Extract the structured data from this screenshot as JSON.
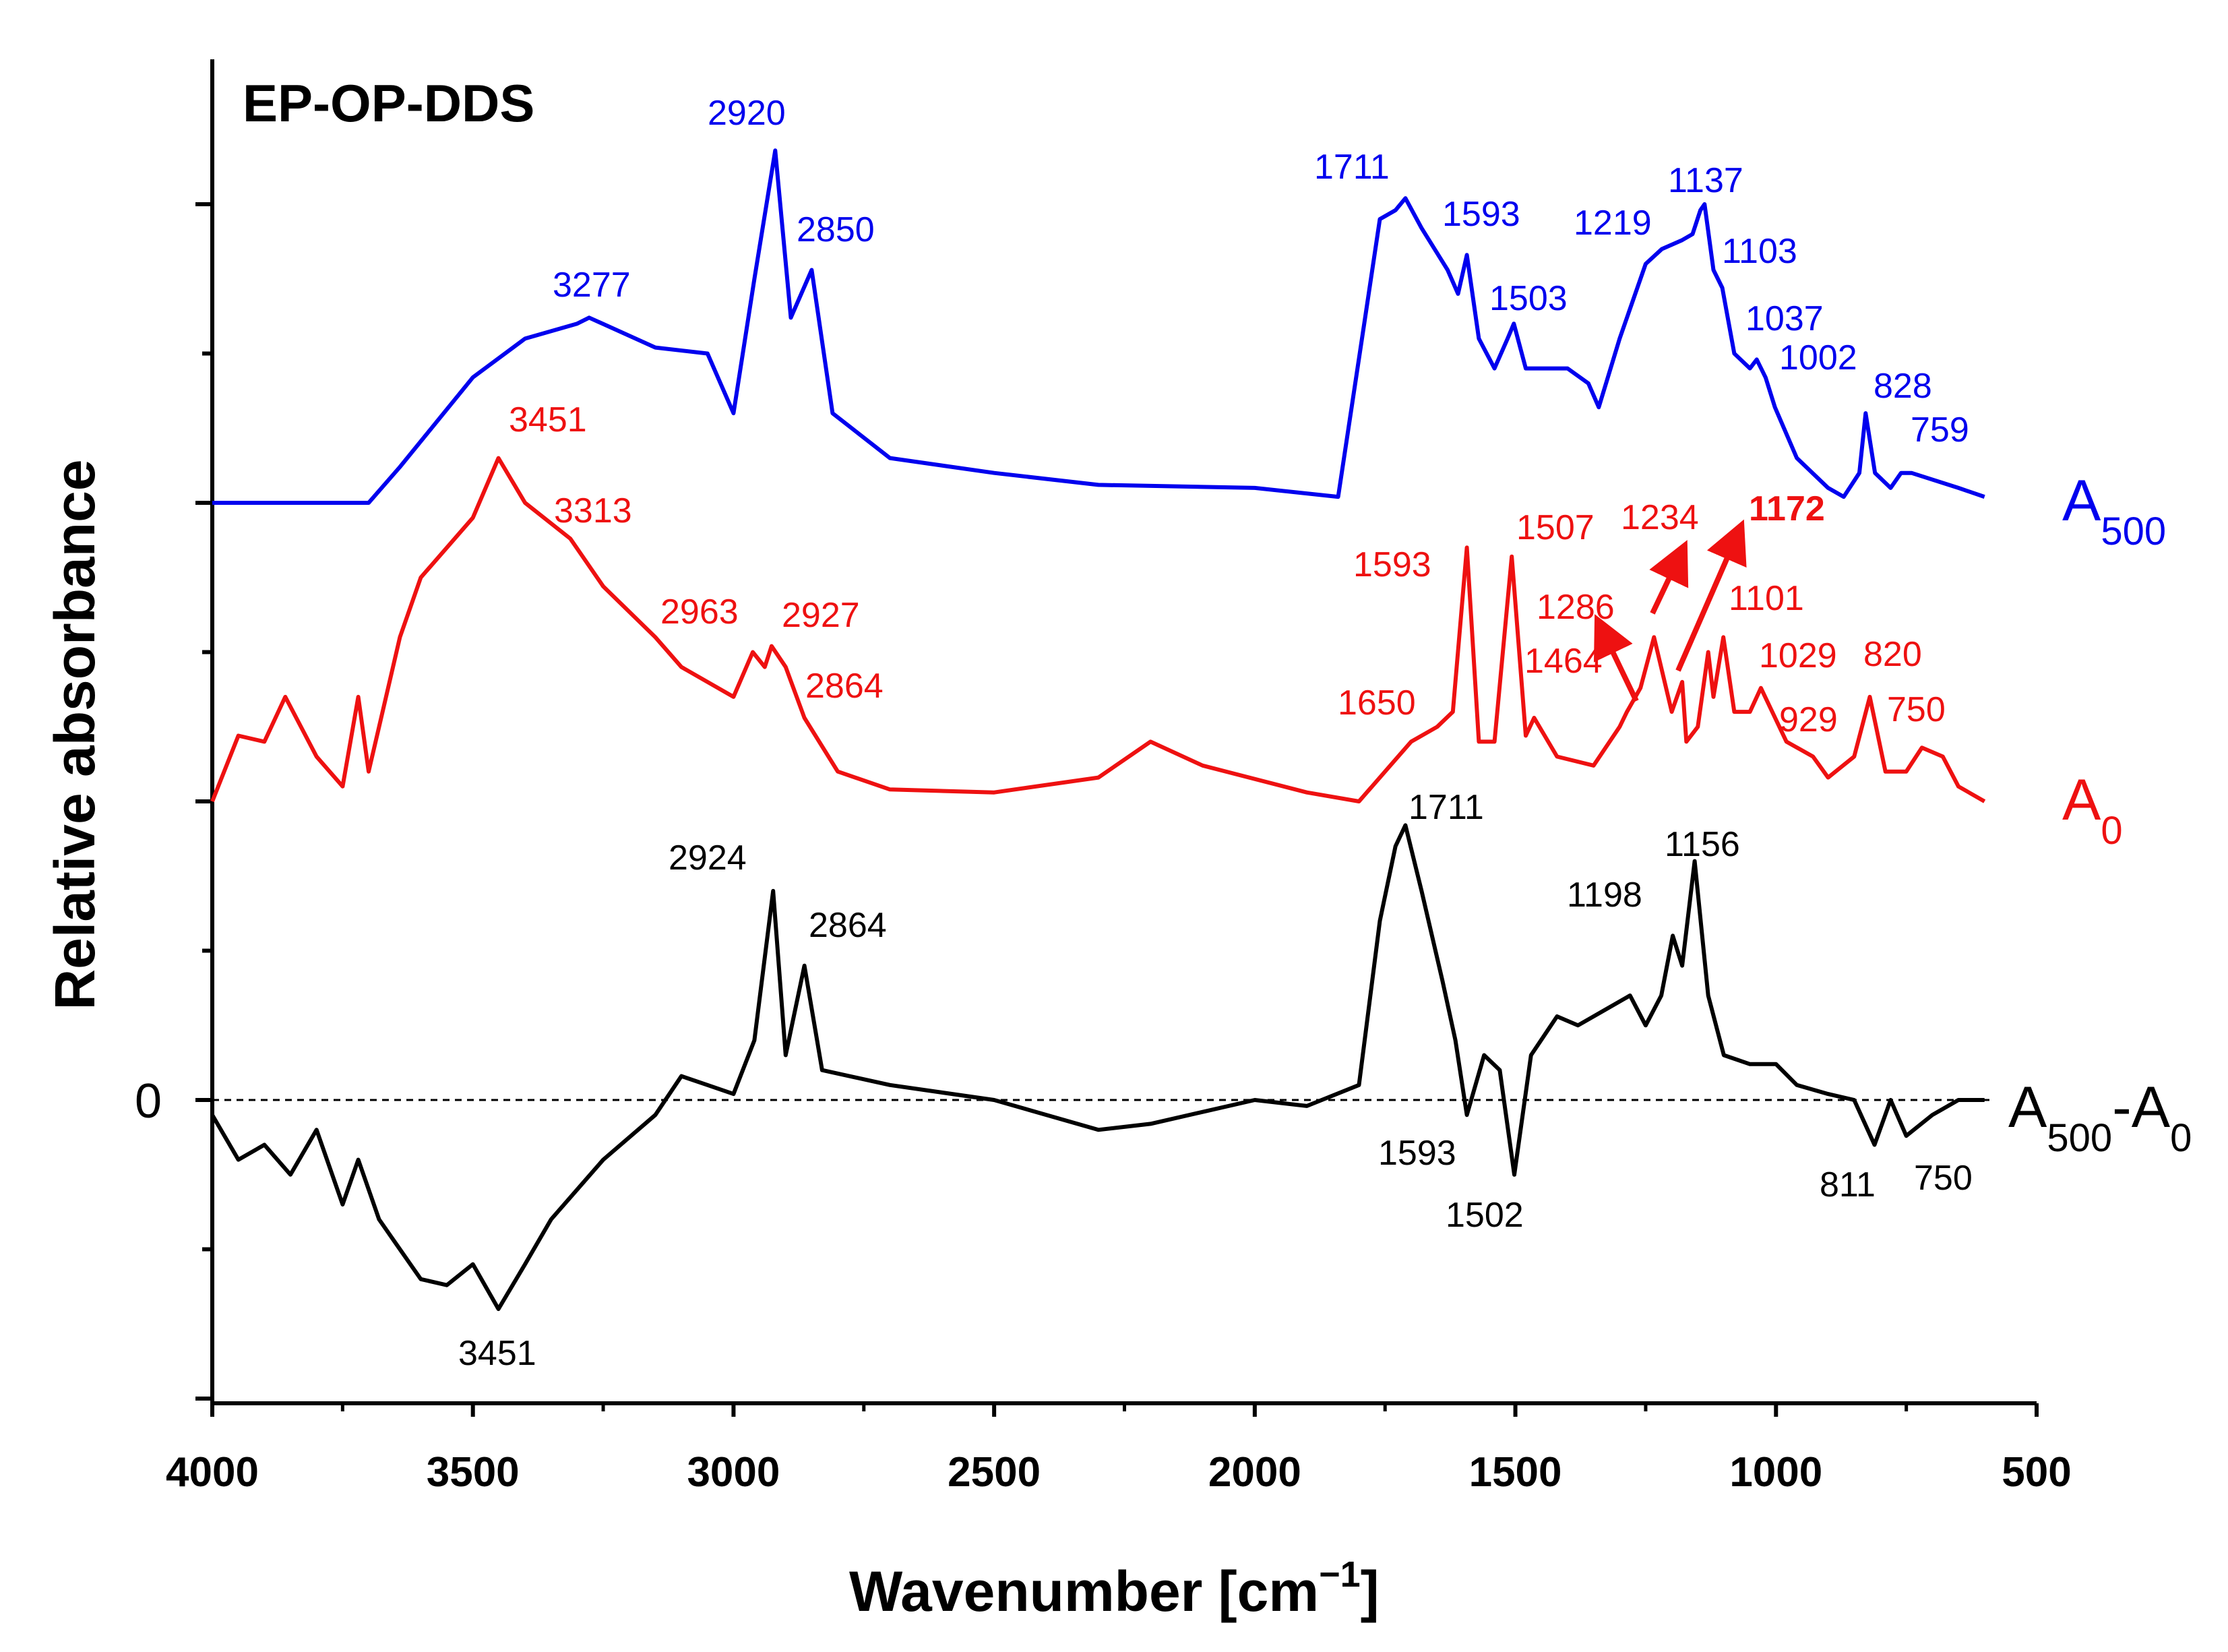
{
  "chart_data": {
    "type": "line",
    "title": "EP-OP-DDS",
    "xlabel": "Wavenumber [cm",
    "xlabel_sup": "−1",
    "xlabel_end": "]",
    "ylabel": "Relative absorbance",
    "xlim": [
      4000,
      500
    ],
    "x_ticks": [
      "4000",
      "3500",
      "3000",
      "2500",
      "2000",
      "1500",
      "1000",
      "500"
    ],
    "zero_label": "0",
    "colors": {
      "A500": "#0000ee",
      "A0": "#ee1111",
      "diff": "#000000"
    },
    "series": [
      {
        "name": "A500",
        "legend_main": "A",
        "legend_sub": "500",
        "offset": 2.0,
        "points": [
          [
            4000,
            0.0
          ],
          [
            3700,
            0.0
          ],
          [
            3640,
            0.12
          ],
          [
            3500,
            0.42
          ],
          [
            3400,
            0.55
          ],
          [
            3300,
            0.6
          ],
          [
            3277,
            0.62
          ],
          [
            3150,
            0.52
          ],
          [
            3050,
            0.5
          ],
          [
            3000,
            0.3
          ],
          [
            2960,
            0.75
          ],
          [
            2920,
            1.18
          ],
          [
            2890,
            0.62
          ],
          [
            2850,
            0.78
          ],
          [
            2810,
            0.3
          ],
          [
            2700,
            0.15
          ],
          [
            2500,
            0.1
          ],
          [
            2300,
            0.06
          ],
          [
            2000,
            0.05
          ],
          [
            1840,
            0.02
          ],
          [
            1790,
            0.6
          ],
          [
            1760,
            0.95
          ],
          [
            1730,
            0.98
          ],
          [
            1711,
            1.02
          ],
          [
            1680,
            0.92
          ],
          [
            1630,
            0.78
          ],
          [
            1610,
            0.7
          ],
          [
            1593,
            0.83
          ],
          [
            1570,
            0.55
          ],
          [
            1540,
            0.45
          ],
          [
            1515,
            0.55
          ],
          [
            1503,
            0.6
          ],
          [
            1480,
            0.45
          ],
          [
            1400,
            0.45
          ],
          [
            1360,
            0.4
          ],
          [
            1340,
            0.32
          ],
          [
            1300,
            0.55
          ],
          [
            1250,
            0.8
          ],
          [
            1219,
            0.85
          ],
          [
            1180,
            0.88
          ],
          [
            1160,
            0.9
          ],
          [
            1145,
            0.98
          ],
          [
            1137,
            1.0
          ],
          [
            1120,
            0.78
          ],
          [
            1103,
            0.72
          ],
          [
            1080,
            0.5
          ],
          [
            1050,
            0.45
          ],
          [
            1037,
            0.48
          ],
          [
            1020,
            0.42
          ],
          [
            1002,
            0.32
          ],
          [
            960,
            0.15
          ],
          [
            900,
            0.05
          ],
          [
            870,
            0.02
          ],
          [
            840,
            0.1
          ],
          [
            828,
            0.3
          ],
          [
            810,
            0.1
          ],
          [
            780,
            0.05
          ],
          [
            760,
            0.1
          ],
          [
            740,
            0.1
          ],
          [
            650,
            0.05
          ],
          [
            600,
            0.02
          ]
        ]
      },
      {
        "name": "A0",
        "legend_main": "A",
        "legend_sub": "0",
        "offset": 1.0,
        "points": [
          [
            4000,
            0.0
          ],
          [
            3950,
            0.22
          ],
          [
            3900,
            0.2
          ],
          [
            3860,
            0.35
          ],
          [
            3800,
            0.15
          ],
          [
            3750,
            0.05
          ],
          [
            3720,
            0.35
          ],
          [
            3700,
            0.1
          ],
          [
            3680,
            0.25
          ],
          [
            3640,
            0.55
          ],
          [
            3600,
            0.75
          ],
          [
            3500,
            0.95
          ],
          [
            3451,
            1.15
          ],
          [
            3400,
            1.0
          ],
          [
            3313,
            0.88
          ],
          [
            3250,
            0.72
          ],
          [
            3150,
            0.55
          ],
          [
            3100,
            0.45
          ],
          [
            3000,
            0.35
          ],
          [
            2963,
            0.5
          ],
          [
            2940,
            0.45
          ],
          [
            2927,
            0.52
          ],
          [
            2900,
            0.45
          ],
          [
            2864,
            0.28
          ],
          [
            2800,
            0.1
          ],
          [
            2700,
            0.04
          ],
          [
            2500,
            0.03
          ],
          [
            2300,
            0.08
          ],
          [
            2200,
            0.2
          ],
          [
            2100,
            0.12
          ],
          [
            1900,
            0.03
          ],
          [
            1800,
            0.0
          ],
          [
            1700,
            0.2
          ],
          [
            1650,
            0.25
          ],
          [
            1620,
            0.3
          ],
          [
            1593,
            0.85
          ],
          [
            1570,
            0.2
          ],
          [
            1540,
            0.2
          ],
          [
            1507,
            0.82
          ],
          [
            1480,
            0.22
          ],
          [
            1464,
            0.28
          ],
          [
            1420,
            0.15
          ],
          [
            1350,
            0.12
          ],
          [
            1300,
            0.25
          ],
          [
            1286,
            0.3
          ],
          [
            1260,
            0.38
          ],
          [
            1234,
            0.55
          ],
          [
            1200,
            0.3
          ],
          [
            1180,
            0.4
          ],
          [
            1172,
            0.2
          ],
          [
            1150,
            0.25
          ],
          [
            1130,
            0.5
          ],
          [
            1120,
            0.35
          ],
          [
            1101,
            0.55
          ],
          [
            1080,
            0.3
          ],
          [
            1050,
            0.3
          ],
          [
            1029,
            0.38
          ],
          [
            980,
            0.2
          ],
          [
            929,
            0.15
          ],
          [
            900,
            0.08
          ],
          [
            850,
            0.15
          ],
          [
            820,
            0.35
          ],
          [
            790,
            0.1
          ],
          [
            750,
            0.1
          ],
          [
            720,
            0.18
          ],
          [
            680,
            0.15
          ],
          [
            650,
            0.05
          ],
          [
            600,
            0.0
          ]
        ]
      },
      {
        "name": "A500-A0",
        "legend_main": "A",
        "legend_sub": "500",
        "legend_mid": "-A",
        "legend_sub2": "0",
        "offset": 0.0,
        "points": [
          [
            4000,
            -0.05
          ],
          [
            3950,
            -0.2
          ],
          [
            3900,
            -0.15
          ],
          [
            3850,
            -0.25
          ],
          [
            3800,
            -0.1
          ],
          [
            3750,
            -0.35
          ],
          [
            3720,
            -0.2
          ],
          [
            3680,
            -0.4
          ],
          [
            3640,
            -0.5
          ],
          [
            3600,
            -0.6
          ],
          [
            3550,
            -0.62
          ],
          [
            3500,
            -0.55
          ],
          [
            3451,
            -0.7
          ],
          [
            3400,
            -0.55
          ],
          [
            3350,
            -0.4
          ],
          [
            3250,
            -0.2
          ],
          [
            3150,
            -0.05
          ],
          [
            3100,
            0.08
          ],
          [
            3050,
            0.05
          ],
          [
            3000,
            0.02
          ],
          [
            2960,
            0.2
          ],
          [
            2924,
            0.7
          ],
          [
            2900,
            0.15
          ],
          [
            2864,
            0.45
          ],
          [
            2830,
            0.1
          ],
          [
            2700,
            0.05
          ],
          [
            2500,
            0.0
          ],
          [
            2300,
            -0.1
          ],
          [
            2200,
            -0.08
          ],
          [
            2000,
            0.0
          ],
          [
            1900,
            -0.02
          ],
          [
            1800,
            0.05
          ],
          [
            1760,
            0.6
          ],
          [
            1730,
            0.85
          ],
          [
            1711,
            0.92
          ],
          [
            1680,
            0.7
          ],
          [
            1640,
            0.4
          ],
          [
            1615,
            0.2
          ],
          [
            1593,
            -0.05
          ],
          [
            1560,
            0.15
          ],
          [
            1530,
            0.1
          ],
          [
            1502,
            -0.25
          ],
          [
            1470,
            0.15
          ],
          [
            1420,
            0.28
          ],
          [
            1380,
            0.25
          ],
          [
            1330,
            0.3
          ],
          [
            1280,
            0.35
          ],
          [
            1250,
            0.25
          ],
          [
            1220,
            0.35
          ],
          [
            1198,
            0.55
          ],
          [
            1180,
            0.45
          ],
          [
            1156,
            0.8
          ],
          [
            1130,
            0.35
          ],
          [
            1100,
            0.15
          ],
          [
            1050,
            0.12
          ],
          [
            1000,
            0.12
          ],
          [
            960,
            0.05
          ],
          [
            900,
            0.02
          ],
          [
            850,
            0.0
          ],
          [
            811,
            -0.15
          ],
          [
            780,
            0.0
          ],
          [
            750,
            -0.12
          ],
          [
            700,
            -0.05
          ],
          [
            650,
            0.0
          ],
          [
            600,
            0.0
          ]
        ]
      }
    ],
    "annotations": {
      "A500": [
        "3277",
        "2920",
        "2850",
        "1711",
        "1593",
        "1503",
        "1219",
        "1137",
        "1103",
        "1037",
        "1002",
        "828",
        "759"
      ],
      "A0": [
        "3451",
        "3313",
        "2963",
        "2927",
        "2864",
        "1650",
        "1593",
        "1507",
        "1286",
        "1464",
        "1234",
        "1172",
        "1101",
        "1029",
        "929",
        "820",
        "750"
      ],
      "diff": [
        "1711",
        "2924",
        "2864",
        "1198",
        "1156",
        "1593",
        "1502",
        "811",
        "750",
        "3451"
      ]
    }
  }
}
